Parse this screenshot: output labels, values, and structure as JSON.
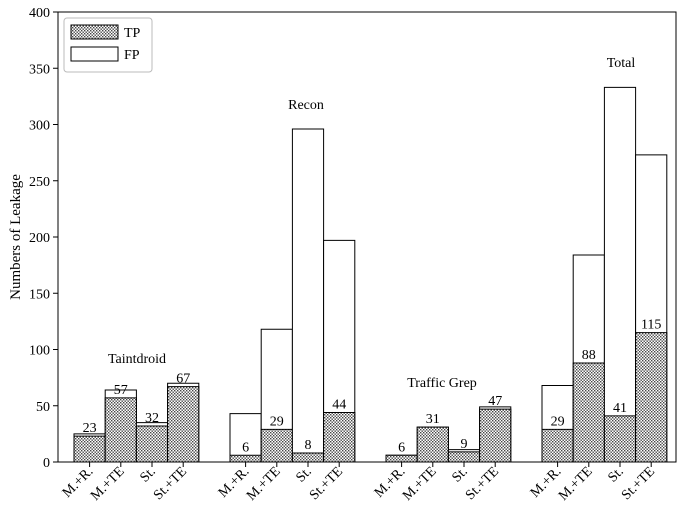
{
  "chart_data": {
    "type": "bar",
    "stacked": true,
    "ylabel": "Numbers of Leakage",
    "xlabel": "",
    "ylim": [
      0,
      400
    ],
    "yticks": [
      0,
      50,
      100,
      150,
      200,
      250,
      300,
      350,
      400
    ],
    "grid": false,
    "legend": {
      "placement": "top-left",
      "entries": [
        {
          "name": "TP",
          "pattern": "dotted"
        },
        {
          "name": "FP",
          "pattern": "empty"
        }
      ]
    },
    "groups": [
      {
        "label": "Taintdroid",
        "categories": [
          "M.+R.",
          "M.+TE",
          "St.",
          "St.+TE"
        ],
        "tp": [
          23,
          57,
          32,
          67
        ],
        "total": [
          25,
          64,
          35,
          70
        ],
        "tp_labels": [
          "23",
          "57",
          "32",
          "67"
        ]
      },
      {
        "label": "Recon",
        "categories": [
          "M.+R.",
          "M.+TE",
          "St.",
          "St.+TE"
        ],
        "tp": [
          6,
          29,
          8,
          44
        ],
        "total": [
          43,
          118,
          296,
          197
        ],
        "tp_labels": [
          "6",
          "29",
          "8",
          "44"
        ]
      },
      {
        "label": "Traffic Grep",
        "categories": [
          "M.+R.",
          "M.+TE",
          "St.",
          "St.+TE"
        ],
        "tp": [
          6,
          31,
          9,
          47
        ],
        "total": [
          6,
          31,
          11,
          49
        ],
        "tp_labels": [
          "6",
          "31",
          "9",
          "47"
        ]
      },
      {
        "label": "Total",
        "categories": [
          "M.+R.",
          "M.+TE",
          "St.",
          "St.+TE"
        ],
        "tp": [
          29,
          88,
          41,
          115
        ],
        "total": [
          68,
          184,
          333,
          273
        ],
        "tp_labels": [
          "29",
          "88",
          "41",
          "115"
        ]
      }
    ]
  }
}
